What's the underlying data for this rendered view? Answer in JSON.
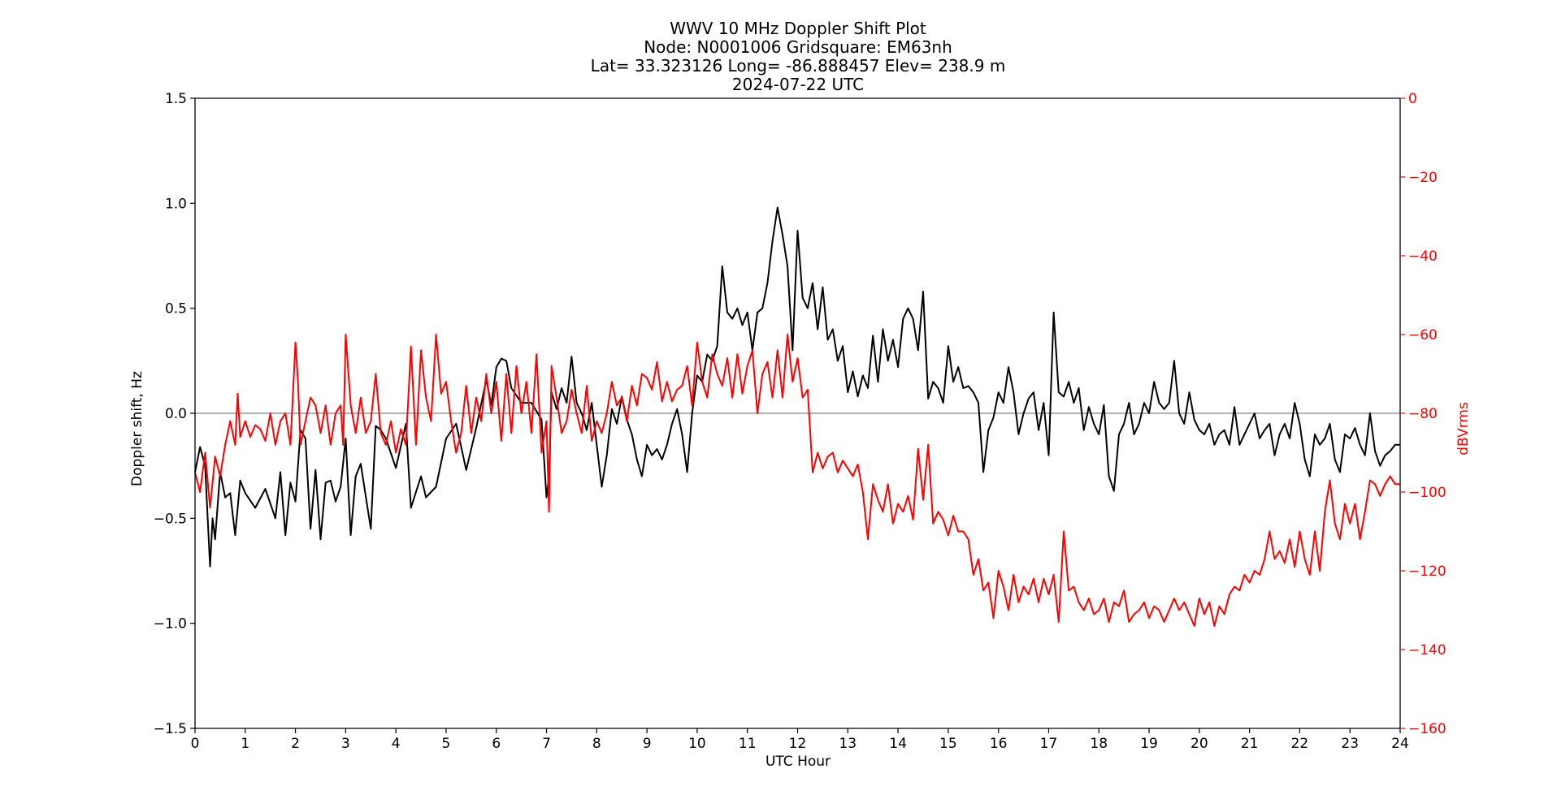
{
  "chart_data": {
    "type": "line",
    "title_lines": [
      "WWV 10 MHz Doppler Shift Plot",
      "Node:  N0001006     Gridsquare:  EM63nh",
      "Lat= 33.323126    Long= -86.888457    Elev= 238.9 m",
      "2024-07-22  UTC"
    ],
    "xlabel": "UTC Hour",
    "ylabel": "Doppler shift, Hz",
    "y2label": "dBVrms",
    "xlim": [
      0,
      24
    ],
    "ylim": [
      -1.5,
      1.5
    ],
    "y2lim": [
      -160,
      0
    ],
    "xticks": [
      0,
      1,
      2,
      3,
      4,
      5,
      6,
      7,
      8,
      9,
      10,
      11,
      12,
      13,
      14,
      15,
      16,
      17,
      18,
      19,
      20,
      21,
      22,
      23,
      24
    ],
    "yticks": [
      -1.5,
      -1.0,
      -0.5,
      0.0,
      0.5,
      1.0,
      1.5
    ],
    "ytick_labels": [
      "−1.5",
      "−1.0",
      "−0.5",
      "0.0",
      "0.5",
      "1.0",
      "1.5"
    ],
    "y2ticks": [
      -160,
      -140,
      -120,
      -100,
      -80,
      -60,
      -40,
      -20,
      0
    ],
    "y2tick_labels": [
      "−160",
      "−140",
      "−120",
      "−100",
      "−80",
      "−60",
      "−40",
      "−20",
      "0"
    ],
    "zero_line": true,
    "grid": false,
    "colors": {
      "doppler": "#000000",
      "power": "#ff0000",
      "zero_line": "#808080",
      "y2_axis": "#ff0000"
    },
    "series": [
      {
        "axis": "left",
        "x": [
          0,
          0.1,
          0.2,
          0.3,
          0.35,
          0.4,
          0.5,
          0.6,
          0.7,
          0.8,
          0.9,
          1.0,
          1.2,
          1.4,
          1.6,
          1.7,
          1.8,
          1.9,
          2.0,
          2.1,
          2.2,
          2.3,
          2.4,
          2.5,
          2.6,
          2.7,
          2.8,
          2.9,
          3.0,
          3.1,
          3.2,
          3.3,
          3.5,
          3.6,
          3.7,
          3.8,
          4.0,
          4.2,
          4.3,
          4.5,
          4.6,
          4.8,
          5.0,
          5.2,
          5.4,
          5.6,
          5.8,
          5.9,
          6.0,
          6.1,
          6.2,
          6.3,
          6.5,
          6.7,
          6.9,
          7.0,
          7.05,
          7.1,
          7.2,
          7.3,
          7.4,
          7.5,
          7.6,
          7.7,
          7.8,
          7.9,
          8.0,
          8.1,
          8.2,
          8.3,
          8.4,
          8.5,
          8.6,
          8.7,
          8.8,
          8.9,
          9.0,
          9.1,
          9.2,
          9.3,
          9.4,
          9.5,
          9.6,
          9.7,
          9.8,
          9.9,
          10.0,
          10.1,
          10.2,
          10.3,
          10.4,
          10.5,
          10.6,
          10.7,
          10.8,
          10.9,
          11.0,
          11.1,
          11.2,
          11.3,
          11.4,
          11.5,
          11.6,
          11.7,
          11.8,
          11.9,
          12.0,
          12.1,
          12.2,
          12.3,
          12.4,
          12.5,
          12.6,
          12.7,
          12.8,
          12.9,
          13.0,
          13.1,
          13.2,
          13.3,
          13.4,
          13.5,
          13.6,
          13.7,
          13.8,
          13.9,
          14.0,
          14.1,
          14.2,
          14.3,
          14.4,
          14.5,
          14.6,
          14.7,
          14.8,
          14.9,
          15.0,
          15.1,
          15.2,
          15.3,
          15.4,
          15.5,
          15.6,
          15.7,
          15.8,
          15.9,
          16.0,
          16.1,
          16.2,
          16.3,
          16.4,
          16.5,
          16.6,
          16.7,
          16.8,
          16.9,
          17.0,
          17.1,
          17.2,
          17.3,
          17.4,
          17.5,
          17.6,
          17.7,
          17.8,
          17.9,
          18.0,
          18.1,
          18.2,
          18.3,
          18.4,
          18.5,
          18.6,
          18.7,
          18.8,
          18.9,
          19.0,
          19.1,
          19.2,
          19.3,
          19.4,
          19.5,
          19.6,
          19.7,
          19.8,
          19.9,
          20.0,
          20.1,
          20.2,
          20.3,
          20.4,
          20.5,
          20.6,
          20.7,
          20.8,
          20.9,
          21.0,
          21.1,
          21.2,
          21.3,
          21.4,
          21.5,
          21.6,
          21.7,
          21.8,
          21.9,
          22.0,
          22.1,
          22.2,
          22.3,
          22.4,
          22.5,
          22.6,
          22.7,
          22.8,
          22.9,
          23.0,
          23.1,
          23.2,
          23.3,
          23.4,
          23.5,
          23.6,
          23.7,
          23.8,
          23.9,
          24.0
        ],
        "values": [
          -0.28,
          -0.16,
          -0.25,
          -0.73,
          -0.5,
          -0.6,
          -0.28,
          -0.4,
          -0.38,
          -0.58,
          -0.32,
          -0.38,
          -0.45,
          -0.36,
          -0.5,
          -0.28,
          -0.58,
          -0.33,
          -0.42,
          -0.08,
          -0.12,
          -0.55,
          -0.27,
          -0.6,
          -0.33,
          -0.32,
          -0.42,
          -0.35,
          -0.12,
          -0.58,
          -0.3,
          -0.24,
          -0.55,
          -0.06,
          -0.08,
          -0.12,
          -0.26,
          -0.05,
          -0.45,
          -0.3,
          -0.4,
          -0.35,
          -0.12,
          -0.05,
          -0.27,
          -0.07,
          0.16,
          0.04,
          0.22,
          0.26,
          0.25,
          0.12,
          0.05,
          0.05,
          -0.03,
          -0.4,
          -0.3,
          0.1,
          0.02,
          0.12,
          0.05,
          0.27,
          0.05,
          0.0,
          -0.08,
          0.05,
          -0.15,
          -0.35,
          -0.2,
          0.02,
          -0.05,
          0.08,
          -0.03,
          -0.1,
          -0.22,
          -0.3,
          -0.15,
          -0.2,
          -0.17,
          -0.22,
          -0.15,
          -0.05,
          0.02,
          -0.1,
          -0.28,
          0.0,
          0.18,
          0.15,
          0.28,
          0.25,
          0.32,
          0.7,
          0.48,
          0.45,
          0.5,
          0.42,
          0.48,
          0.3,
          0.48,
          0.5,
          0.62,
          0.82,
          0.98,
          0.85,
          0.7,
          0.3,
          0.87,
          0.55,
          0.5,
          0.62,
          0.4,
          0.6,
          0.35,
          0.4,
          0.25,
          0.32,
          0.1,
          0.2,
          0.08,
          0.18,
          0.12,
          0.37,
          0.15,
          0.4,
          0.25,
          0.35,
          0.22,
          0.45,
          0.5,
          0.45,
          0.3,
          0.58,
          0.07,
          0.15,
          0.12,
          0.05,
          0.32,
          0.15,
          0.22,
          0.12,
          0.13,
          0.1,
          0.05,
          -0.28,
          -0.08,
          -0.02,
          0.1,
          0.05,
          0.22,
          0.1,
          -0.1,
          0.0,
          0.07,
          0.1,
          -0.08,
          0.05,
          -0.2,
          0.48,
          0.1,
          0.08,
          0.15,
          0.05,
          0.12,
          -0.08,
          0.03,
          -0.05,
          -0.1,
          0.04,
          -0.3,
          -0.37,
          -0.1,
          -0.05,
          0.05,
          -0.1,
          -0.05,
          0.05,
          0.0,
          0.15,
          0.05,
          0.02,
          0.05,
          0.25,
          0.0,
          -0.05,
          0.1,
          -0.03,
          -0.08,
          -0.1,
          -0.05,
          -0.15,
          -0.1,
          -0.08,
          -0.15,
          0.03,
          -0.15,
          -0.1,
          -0.05,
          0.0,
          -0.12,
          -0.08,
          -0.05,
          -0.2,
          -0.1,
          -0.05,
          -0.12,
          0.05,
          -0.05,
          -0.22,
          -0.3,
          -0.1,
          -0.15,
          -0.12,
          -0.05,
          -0.22,
          -0.28,
          -0.1,
          -0.12,
          -0.07,
          -0.15,
          -0.2,
          0.0,
          -0.18,
          -0.25,
          -0.2,
          -0.18,
          -0.15,
          -0.15
        ]
      },
      {
        "axis": "right",
        "x": [
          0,
          0.1,
          0.2,
          0.3,
          0.4,
          0.5,
          0.6,
          0.7,
          0.8,
          0.85,
          0.9,
          1.0,
          1.1,
          1.2,
          1.3,
          1.4,
          1.5,
          1.6,
          1.7,
          1.8,
          1.9,
          2.0,
          2.05,
          2.1,
          2.2,
          2.3,
          2.4,
          2.5,
          2.6,
          2.7,
          2.8,
          2.9,
          2.95,
          3.0,
          3.1,
          3.2,
          3.3,
          3.4,
          3.5,
          3.6,
          3.7,
          3.8,
          3.9,
          4.0,
          4.1,
          4.2,
          4.3,
          4.4,
          4.5,
          4.6,
          4.7,
          4.8,
          4.9,
          5.0,
          5.1,
          5.2,
          5.3,
          5.4,
          5.5,
          5.6,
          5.7,
          5.8,
          5.9,
          6.0,
          6.1,
          6.2,
          6.3,
          6.4,
          6.5,
          6.6,
          6.7,
          6.8,
          6.9,
          7.0,
          7.05,
          7.1,
          7.2,
          7.3,
          7.4,
          7.5,
          7.6,
          7.7,
          7.8,
          7.9,
          8.0,
          8.1,
          8.2,
          8.3,
          8.4,
          8.5,
          8.6,
          8.7,
          8.8,
          8.9,
          9.0,
          9.1,
          9.2,
          9.3,
          9.4,
          9.5,
          9.6,
          9.7,
          9.8,
          9.9,
          10.0,
          10.1,
          10.2,
          10.3,
          10.4,
          10.5,
          10.6,
          10.7,
          10.8,
          10.9,
          11.0,
          11.1,
          11.2,
          11.3,
          11.4,
          11.5,
          11.6,
          11.7,
          11.8,
          11.9,
          12.0,
          12.1,
          12.2,
          12.3,
          12.4,
          12.5,
          12.6,
          12.7,
          12.8,
          12.9,
          13.0,
          13.1,
          13.2,
          13.3,
          13.4,
          13.5,
          13.6,
          13.7,
          13.8,
          13.9,
          14.0,
          14.1,
          14.2,
          14.3,
          14.4,
          14.5,
          14.6,
          14.7,
          14.8,
          14.9,
          15.0,
          15.1,
          15.2,
          15.3,
          15.4,
          15.5,
          15.6,
          15.7,
          15.8,
          15.9,
          16.0,
          16.1,
          16.2,
          16.3,
          16.4,
          16.5,
          16.6,
          16.7,
          16.8,
          16.9,
          17.0,
          17.1,
          17.2,
          17.3,
          17.4,
          17.5,
          17.6,
          17.7,
          17.8,
          17.9,
          18.0,
          18.1,
          18.2,
          18.3,
          18.4,
          18.5,
          18.6,
          18.7,
          18.8,
          18.9,
          19.0,
          19.1,
          19.2,
          19.3,
          19.4,
          19.5,
          19.6,
          19.7,
          19.8,
          19.9,
          20.0,
          20.1,
          20.2,
          20.3,
          20.4,
          20.5,
          20.6,
          20.7,
          20.8,
          20.9,
          21.0,
          21.1,
          21.2,
          21.3,
          21.4,
          21.5,
          21.6,
          21.7,
          21.8,
          21.9,
          22.0,
          22.1,
          22.2,
          22.3,
          22.4,
          22.5,
          22.6,
          22.7,
          22.8,
          22.9,
          23.0,
          23.1,
          23.2,
          23.3,
          23.4,
          23.5,
          23.6,
          23.7,
          23.8,
          23.9,
          24.0
        ],
        "values": [
          -95,
          -100,
          -90,
          -104,
          -91,
          -96,
          -88,
          -82,
          -88,
          -75,
          -86,
          -82,
          -86,
          -83,
          -84,
          -87,
          -80,
          -88,
          -82,
          -80,
          -88,
          -62,
          -72,
          -88,
          -82,
          -76,
          -78,
          -85,
          -78,
          -88,
          -80,
          -78,
          -88,
          -60,
          -78,
          -85,
          -76,
          -85,
          -82,
          -70,
          -85,
          -88,
          -82,
          -90,
          -84,
          -88,
          -63,
          -88,
          -64,
          -76,
          -82,
          -60,
          -75,
          -72,
          -82,
          -90,
          -85,
          -73,
          -85,
          -76,
          -82,
          -70,
          -80,
          -72,
          -87,
          -70,
          -85,
          -68,
          -80,
          -72,
          -85,
          -65,
          -90,
          -82,
          -105,
          -68,
          -76,
          -85,
          -82,
          -74,
          -80,
          -85,
          -73,
          -87,
          -82,
          -85,
          -80,
          -72,
          -78,
          -76,
          -82,
          -73,
          -78,
          -70,
          -71,
          -74,
          -67,
          -77,
          -72,
          -77,
          -74,
          -73,
          -68,
          -78,
          -62,
          -72,
          -76,
          -65,
          -70,
          -73,
          -66,
          -76,
          -65,
          -75,
          -68,
          -64,
          -80,
          -70,
          -67,
          -76,
          -64,
          -76,
          -60,
          -72,
          -66,
          -76,
          -74,
          -95,
          -90,
          -94,
          -91,
          -90,
          -95,
          -92,
          -94,
          -96,
          -93,
          -100,
          -112,
          -98,
          -102,
          -105,
          -98,
          -108,
          -103,
          -105,
          -101,
          -107,
          -89,
          -102,
          -88,
          -108,
          -105,
          -107,
          -111,
          -106,
          -110,
          -110,
          -112,
          -121,
          -117,
          -125,
          -123,
          -132,
          -120,
          -124,
          -130,
          -121,
          -128,
          -124,
          -126,
          -122,
          -128,
          -122,
          -126,
          -121,
          -133,
          -110,
          -125,
          -124,
          -128,
          -130,
          -127,
          -131,
          -130,
          -127,
          -133,
          -128,
          -129,
          -125,
          -133,
          -131,
          -130,
          -128,
          -132,
          -129,
          -130,
          -133,
          -130,
          -127,
          -130,
          -128,
          -131,
          -134,
          -127,
          -131,
          -128,
          -134,
          -129,
          -131,
          -126,
          -124,
          -125,
          -121,
          -123,
          -120,
          -121,
          -117,
          -110,
          -117,
          -115,
          -118,
          -112,
          -119,
          -110,
          -117,
          -121,
          -110,
          -120,
          -105,
          -97,
          -108,
          -112,
          -103,
          -108,
          -103,
          -112,
          -105,
          -97,
          -98,
          -101,
          -98,
          -96,
          -98,
          -98
        ]
      }
    ]
  }
}
